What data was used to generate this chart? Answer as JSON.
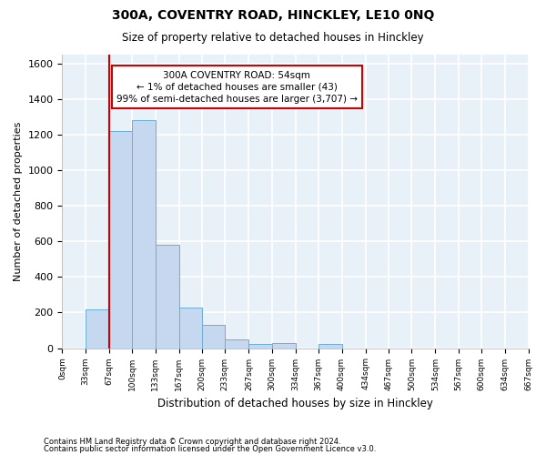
{
  "title": "300A, COVENTRY ROAD, HINCKLEY, LE10 0NQ",
  "subtitle": "Size of property relative to detached houses in Hinckley",
  "xlabel": "Distribution of detached houses by size in Hinckley",
  "ylabel": "Number of detached properties",
  "bar_color": "#c5d8f0",
  "bar_edge_color": "#6baed6",
  "background_color": "#e8f0f8",
  "grid_color": "#ffffff",
  "vline_x": 67,
  "vline_color": "#cc0000",
  "annotation_text": "300A COVENTRY ROAD: 54sqm\n← 1% of detached houses are smaller (43)\n99% of semi-detached houses are larger (3,707) →",
  "footnote1": "Contains HM Land Registry data © Crown copyright and database right 2024.",
  "footnote2": "Contains public sector information licensed under the Open Government Licence v3.0.",
  "bin_edges": [
    0,
    33,
    67,
    100,
    133,
    167,
    200,
    233,
    267,
    300,
    334,
    367,
    400,
    434,
    467,
    500,
    534,
    567,
    600,
    634,
    667
  ],
  "bar_heights": [
    0,
    220,
    1220,
    1280,
    580,
    230,
    130,
    50,
    25,
    30,
    0,
    25,
    0,
    0,
    0,
    0,
    0,
    0,
    0,
    0
  ],
  "ylim": [
    0,
    1650
  ],
  "yticks": [
    0,
    200,
    400,
    600,
    800,
    1000,
    1200,
    1400,
    1600
  ]
}
